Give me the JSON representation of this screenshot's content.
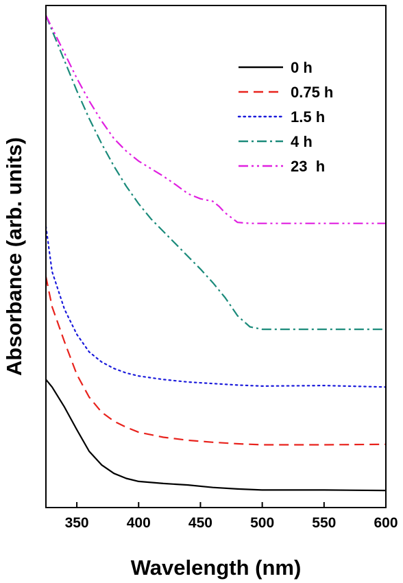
{
  "chart_data": {
    "type": "line",
    "xlabel": "Wavelength (nm)",
    "ylabel": "Absorbance (arb. units)",
    "xlim": [
      325,
      600
    ],
    "ylim": [
      0,
      1
    ],
    "x_ticks": [
      350,
      400,
      450,
      500,
      550,
      600
    ],
    "y_ticks_shown": false,
    "grid": false,
    "legend_placement": "top-right",
    "series": [
      {
        "name": "0 h",
        "color": "#000000",
        "style": "solid",
        "x": [
          325,
          330,
          340,
          350,
          360,
          370,
          380,
          390,
          400,
          420,
          440,
          460,
          480,
          500,
          550,
          600
        ],
        "y": [
          0.255,
          0.24,
          0.2,
          0.155,
          0.112,
          0.085,
          0.068,
          0.058,
          0.052,
          0.048,
          0.045,
          0.04,
          0.037,
          0.035,
          0.035,
          0.034
        ]
      },
      {
        "name": "0.75 h",
        "color": "#e8221c",
        "style": "dashed",
        "x": [
          325,
          330,
          340,
          350,
          360,
          370,
          380,
          390,
          400,
          420,
          440,
          460,
          480,
          500,
          550,
          600
        ],
        "y": [
          0.46,
          0.4,
          0.33,
          0.265,
          0.22,
          0.19,
          0.172,
          0.16,
          0.15,
          0.14,
          0.134,
          0.13,
          0.127,
          0.125,
          0.125,
          0.126
        ]
      },
      {
        "name": "1.5 h",
        "color": "#1a1adb",
        "style": "dotted",
        "x": [
          325,
          330,
          340,
          350,
          360,
          370,
          380,
          390,
          400,
          420,
          440,
          460,
          480,
          500,
          550,
          600
        ],
        "y": [
          0.56,
          0.47,
          0.395,
          0.345,
          0.31,
          0.29,
          0.277,
          0.268,
          0.262,
          0.255,
          0.25,
          0.247,
          0.244,
          0.242,
          0.243,
          0.24
        ]
      },
      {
        "name": "4 h",
        "color": "#1a8a7a",
        "style": "dashdot",
        "x": [
          325,
          330,
          340,
          350,
          360,
          370,
          380,
          390,
          400,
          410,
          420,
          430,
          440,
          450,
          460,
          470,
          480,
          490,
          500,
          550,
          600
        ],
        "y": [
          0.98,
          0.95,
          0.89,
          0.83,
          0.775,
          0.725,
          0.68,
          0.64,
          0.605,
          0.575,
          0.55,
          0.525,
          0.5,
          0.475,
          0.448,
          0.418,
          0.382,
          0.36,
          0.355,
          0.355,
          0.355
        ]
      },
      {
        "name": "23  h",
        "color": "#e020e0",
        "style": "dashdotdot",
        "x": [
          325,
          330,
          340,
          350,
          360,
          370,
          380,
          390,
          400,
          410,
          420,
          430,
          440,
          450,
          460,
          465,
          470,
          480,
          490,
          500,
          550,
          600
        ],
        "y": [
          0.98,
          0.955,
          0.905,
          0.855,
          0.81,
          0.77,
          0.735,
          0.71,
          0.69,
          0.675,
          0.66,
          0.643,
          0.625,
          0.615,
          0.61,
          0.6,
          0.587,
          0.568,
          0.566,
          0.566,
          0.566,
          0.566
        ]
      }
    ]
  }
}
